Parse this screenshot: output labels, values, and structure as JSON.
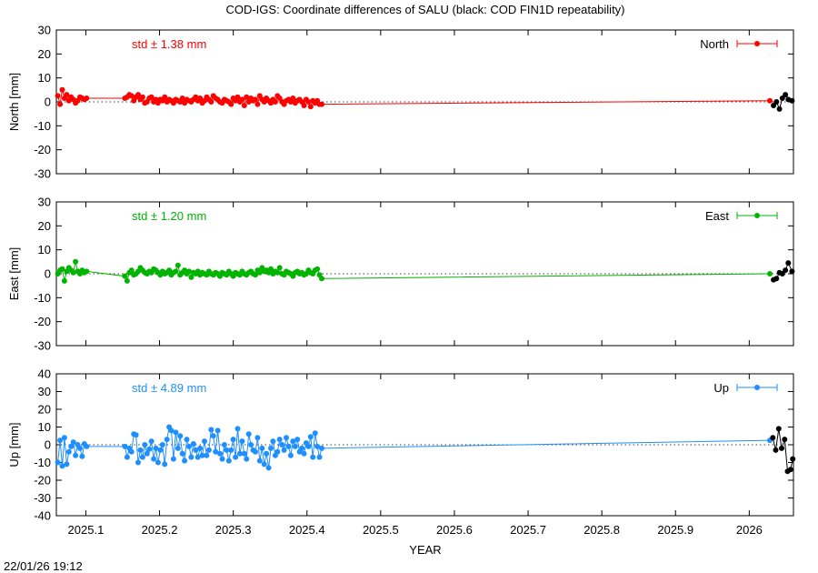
{
  "title": "COD-IGS: Coordinate differences of SALU (black: COD FIN1D repeatability)",
  "xlabel": "YEAR",
  "timestamp": "22/01/26 19:12",
  "chart_data": [
    {
      "type": "line",
      "name": "North",
      "ylabel": "North [mm]",
      "std_label": "std ± 1.38 mm",
      "color": "#ff0000",
      "ylim": [
        -30,
        30
      ],
      "yticks": [
        -30,
        -20,
        -10,
        0,
        10,
        20,
        30
      ],
      "xlim": [
        2025.06,
        2026.06
      ],
      "xticks": [
        2025.1,
        2025.2,
        2025.3,
        2025.4,
        2025.5,
        2025.6,
        2025.7,
        2025.8,
        2025.9,
        2026
      ],
      "xticklabels": [
        "2025.1",
        "2025.2",
        "2025.3",
        "2025.4",
        "2025.5",
        "2025.6",
        "2025.7",
        "2025.8",
        "2025.9",
        "2026"
      ],
      "x": [
        2025.062,
        2025.065,
        2025.068,
        2025.071,
        2025.074,
        2025.077,
        2025.08,
        2025.083,
        2025.086,
        2025.089,
        2025.092,
        2025.095,
        2025.098,
        2025.101,
        2025.153,
        2025.156,
        2025.159,
        2025.162,
        2025.165,
        2025.168,
        2025.171,
        2025.174,
        2025.177,
        2025.18,
        2025.183,
        2025.186,
        2025.189,
        2025.192,
        2025.195,
        2025.198,
        2025.201,
        2025.204,
        2025.207,
        2025.21,
        2025.213,
        2025.216,
        2025.219,
        2025.222,
        2025.225,
        2025.228,
        2025.231,
        2025.234,
        2025.237,
        2025.24,
        2025.243,
        2025.246,
        2025.249,
        2025.252,
        2025.255,
        2025.258,
        2025.261,
        2025.264,
        2025.267,
        2025.27,
        2025.273,
        2025.276,
        2025.279,
        2025.282,
        2025.285,
        2025.288,
        2025.291,
        2025.294,
        2025.297,
        2025.3,
        2025.303,
        2025.306,
        2025.309,
        2025.312,
        2025.315,
        2025.318,
        2025.321,
        2025.324,
        2025.327,
        2025.33,
        2025.333,
        2025.336,
        2025.339,
        2025.342,
        2025.345,
        2025.348,
        2025.351,
        2025.354,
        2025.357,
        2025.36,
        2025.363,
        2025.366,
        2025.369,
        2025.372,
        2025.375,
        2025.378,
        2025.381,
        2025.384,
        2025.387,
        2025.39,
        2025.393,
        2025.396,
        2025.399,
        2025.402,
        2025.405,
        2025.408,
        2025.411,
        2025.414,
        2025.417,
        2025.42,
        2026.028
      ],
      "y": [
        2.5,
        -1.0,
        5.0,
        1.5,
        3.0,
        0.5,
        2.0,
        1.0,
        -0.5,
        0.5,
        2.0,
        1.5,
        1.0,
        1.5,
        1.5,
        2.0,
        3.0,
        2.5,
        0.5,
        2.0,
        3.0,
        1.0,
        2.0,
        -0.5,
        0.0,
        1.5,
        2.0,
        0.0,
        1.0,
        -0.5,
        1.0,
        0.5,
        2.0,
        0.0,
        1.0,
        0.5,
        -0.5,
        1.0,
        0.5,
        0.0,
        1.5,
        -0.5,
        1.0,
        0.5,
        0.0,
        1.0,
        2.0,
        0.5,
        1.5,
        -0.5,
        0.5,
        2.0,
        1.0,
        0.0,
        2.5,
        1.5,
        1.0,
        0.0,
        -0.5,
        1.0,
        0.5,
        0.0,
        -1.0,
        1.5,
        0.5,
        2.0,
        0.0,
        1.0,
        -1.5,
        2.0,
        0.0,
        1.5,
        0.5,
        1.0,
        -1.0,
        2.5,
        1.0,
        0.0,
        1.5,
        0.5,
        -0.5,
        1.0,
        0.0,
        2.5,
        1.5,
        0.0,
        -1.0,
        0.5,
        1.0,
        0.0,
        1.5,
        -0.5,
        0.5,
        1.0,
        0.0,
        -1.5,
        1.0,
        0.0,
        -2.0,
        0.5,
        -0.5,
        0.5,
        -1.0,
        -1.0,
        0.5
      ],
      "repeat_x": [
        2026.033,
        2026.037,
        2026.041,
        2026.045,
        2026.049,
        2026.053,
        2026.058
      ],
      "repeat_y": [
        -1.5,
        0.0,
        -3.0,
        1.5,
        3.0,
        1.0,
        0.5
      ]
    },
    {
      "type": "line",
      "name": "East",
      "ylabel": "East [mm]",
      "std_label": "std ± 1.20 mm",
      "color": "#00b400",
      "ylim": [
        -30,
        30
      ],
      "yticks": [
        -30,
        -20,
        -10,
        0,
        10,
        20,
        30
      ],
      "xlim": [
        2025.06,
        2026.06
      ],
      "xticks": [
        2025.1,
        2025.2,
        2025.3,
        2025.4,
        2025.5,
        2025.6,
        2025.7,
        2025.8,
        2025.9,
        2026
      ],
      "xticklabels": [
        "2025.1",
        "2025.2",
        "2025.3",
        "2025.4",
        "2025.5",
        "2025.6",
        "2025.7",
        "2025.8",
        "2025.9",
        "2026"
      ],
      "x": [
        2025.062,
        2025.065,
        2025.068,
        2025.071,
        2025.074,
        2025.077,
        2025.08,
        2025.083,
        2025.086,
        2025.089,
        2025.092,
        2025.095,
        2025.098,
        2025.101,
        2025.153,
        2025.156,
        2025.159,
        2025.162,
        2025.165,
        2025.168,
        2025.171,
        2025.174,
        2025.177,
        2025.18,
        2025.183,
        2025.186,
        2025.189,
        2025.192,
        2025.195,
        2025.198,
        2025.201,
        2025.204,
        2025.207,
        2025.21,
        2025.213,
        2025.216,
        2025.219,
        2025.222,
        2025.225,
        2025.228,
        2025.231,
        2025.234,
        2025.237,
        2025.24,
        2025.243,
        2025.246,
        2025.249,
        2025.252,
        2025.255,
        2025.258,
        2025.261,
        2025.264,
        2025.267,
        2025.27,
        2025.273,
        2025.276,
        2025.279,
        2025.282,
        2025.285,
        2025.288,
        2025.291,
        2025.294,
        2025.297,
        2025.3,
        2025.303,
        2025.306,
        2025.309,
        2025.312,
        2025.315,
        2025.318,
        2025.321,
        2025.324,
        2025.327,
        2025.33,
        2025.333,
        2025.336,
        2025.339,
        2025.342,
        2025.345,
        2025.348,
        2025.351,
        2025.354,
        2025.357,
        2025.36,
        2025.363,
        2025.366,
        2025.369,
        2025.372,
        2025.375,
        2025.378,
        2025.381,
        2025.384,
        2025.387,
        2025.39,
        2025.393,
        2025.396,
        2025.399,
        2025.402,
        2025.405,
        2025.408,
        2025.411,
        2025.414,
        2025.417,
        2025.42,
        2026.028
      ],
      "y": [
        0.0,
        1.5,
        2.0,
        -3.0,
        1.0,
        2.5,
        1.5,
        0.5,
        5.0,
        1.0,
        0.0,
        1.5,
        0.5,
        1.0,
        -1.0,
        -3.0,
        0.5,
        1.5,
        -0.5,
        0.0,
        1.0,
        2.5,
        1.5,
        0.5,
        0.0,
        1.0,
        0.5,
        2.0,
        1.5,
        0.5,
        -0.5,
        1.0,
        0.0,
        0.5,
        1.5,
        -0.5,
        0.5,
        1.0,
        3.5,
        -0.5,
        0.5,
        1.5,
        0.0,
        1.0,
        -1.5,
        0.5,
        0.0,
        1.0,
        -0.5,
        0.5,
        0.0,
        -0.5,
        1.0,
        0.0,
        -0.5,
        0.5,
        0.0,
        -1.0,
        0.5,
        0.0,
        -0.5,
        1.0,
        0.0,
        -1.0,
        0.5,
        0.0,
        -0.5,
        1.0,
        0.0,
        -0.5,
        0.5,
        1.0,
        0.0,
        -0.5,
        1.5,
        0.5,
        2.5,
        1.0,
        1.5,
        0.5,
        2.0,
        0.0,
        1.0,
        0.5,
        2.5,
        0.0,
        -0.5,
        1.0,
        0.5,
        0.0,
        -1.0,
        0.5,
        1.0,
        0.0,
        0.5,
        -0.5,
        0.0,
        1.5,
        0.5,
        0.0,
        1.5,
        2.0,
        -0.5,
        -2.0,
        0.0
      ],
      "repeat_x": [
        2026.033,
        2026.037,
        2026.041,
        2026.045,
        2026.049,
        2026.053,
        2026.058
      ],
      "repeat_y": [
        -2.5,
        -2.0,
        0.5,
        0.0,
        1.5,
        4.5,
        1.0
      ]
    },
    {
      "type": "line",
      "name": "Up",
      "ylabel": "Up [mm]",
      "std_label": "std ± 4.89 mm",
      "color": "#1e8fff",
      "ylim": [
        -40,
        40
      ],
      "yticks": [
        -40,
        -30,
        -20,
        -10,
        0,
        10,
        20,
        30,
        40
      ],
      "xlim": [
        2025.06,
        2026.06
      ],
      "xticks": [
        2025.1,
        2025.2,
        2025.3,
        2025.4,
        2025.5,
        2025.6,
        2025.7,
        2025.8,
        2025.9,
        2026
      ],
      "xticklabels": [
        "2025.1",
        "2025.2",
        "2025.3",
        "2025.4",
        "2025.5",
        "2025.6",
        "2025.7",
        "2025.8",
        "2025.9",
        "2026"
      ],
      "x": [
        2025.062,
        2025.065,
        2025.068,
        2025.071,
        2025.074,
        2025.077,
        2025.08,
        2025.083,
        2025.086,
        2025.089,
        2025.092,
        2025.095,
        2025.098,
        2025.101,
        2025.153,
        2025.156,
        2025.159,
        2025.162,
        2025.165,
        2025.168,
        2025.171,
        2025.174,
        2025.177,
        2025.18,
        2025.183,
        2025.186,
        2025.189,
        2025.192,
        2025.195,
        2025.198,
        2025.201,
        2025.204,
        2025.207,
        2025.21,
        2025.213,
        2025.216,
        2025.219,
        2025.222,
        2025.225,
        2025.228,
        2025.231,
        2025.234,
        2025.237,
        2025.24,
        2025.243,
        2025.246,
        2025.249,
        2025.252,
        2025.255,
        2025.258,
        2025.261,
        2025.264,
        2025.267,
        2025.27,
        2025.273,
        2025.276,
        2025.279,
        2025.282,
        2025.285,
        2025.288,
        2025.291,
        2025.294,
        2025.297,
        2025.3,
        2025.303,
        2025.306,
        2025.309,
        2025.312,
        2025.315,
        2025.318,
        2025.321,
        2025.324,
        2025.327,
        2025.33,
        2025.333,
        2025.336,
        2025.339,
        2025.342,
        2025.345,
        2025.348,
        2025.351,
        2025.354,
        2025.357,
        2025.36,
        2025.363,
        2025.366,
        2025.369,
        2025.372,
        2025.375,
        2025.378,
        2025.381,
        2025.384,
        2025.387,
        2025.39,
        2025.393,
        2025.396,
        2025.399,
        2025.402,
        2025.405,
        2025.408,
        2025.411,
        2025.414,
        2025.417,
        2025.42,
        2026.028
      ],
      "y": [
        -10.0,
        2.5,
        -12.0,
        4.0,
        -11.0,
        -4.0,
        -1.0,
        1.5,
        -6.0,
        0.0,
        -2.0,
        -6.5,
        0.5,
        -1.0,
        -1.0,
        -7.0,
        -2.0,
        -4.0,
        6.0,
        5.5,
        -10.0,
        -3.0,
        -7.0,
        0.0,
        -5.0,
        -2.5,
        2.0,
        -8.0,
        -2.0,
        -10.0,
        -3.0,
        0.0,
        -11.0,
        3.0,
        10.0,
        8.0,
        -8.0,
        7.0,
        -2.0,
        5.0,
        -5.0,
        -9.0,
        3.0,
        -1.0,
        -7.0,
        0.5,
        -3.0,
        -7.0,
        -2.0,
        -6.0,
        2.0,
        -6.0,
        -3.0,
        8.5,
        5.0,
        -4.0,
        8.0,
        -5.0,
        -8.0,
        0.0,
        -3.0,
        -9.0,
        -3.0,
        3.0,
        -7.0,
        9.0,
        -5.0,
        2.0,
        -5.0,
        -8.0,
        6.0,
        0.0,
        -3.0,
        -4.0,
        4.0,
        -9.0,
        -2.0,
        -11.0,
        -5.0,
        -13.0,
        -2.0,
        2.0,
        -6.0,
        -4.0,
        3.0,
        0.0,
        -3.0,
        4.0,
        -1.0,
        -6.0,
        2.0,
        -1.0,
        3.0,
        -4.0,
        -2.0,
        -5.0,
        1.0,
        -1.0,
        4.5,
        -7.0,
        6.5,
        -1.0,
        -7.0,
        -2.0,
        2.5
      ],
      "repeat_x": [
        2026.032,
        2026.036,
        2026.04,
        2026.044,
        2026.048,
        2026.052,
        2026.056,
        2026.059
      ],
      "repeat_y": [
        4.0,
        -3.0,
        9.0,
        -2.0,
        3.0,
        -15.0,
        -14.0,
        -8.0
      ]
    }
  ]
}
